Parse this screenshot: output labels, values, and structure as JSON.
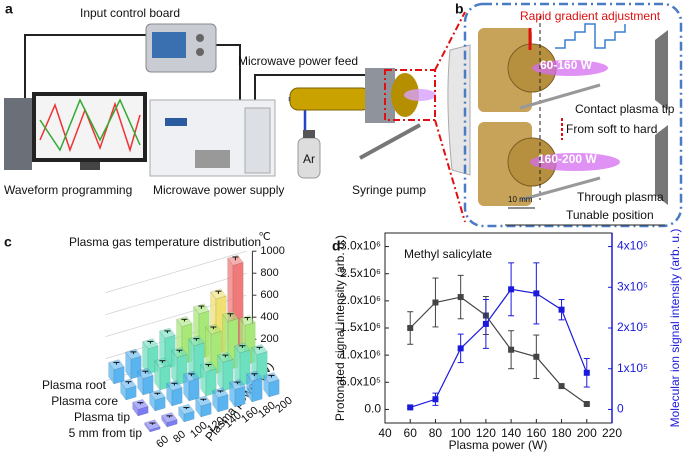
{
  "diagram": {
    "panel_a": {
      "label": "a",
      "input_control_board": "Input control board",
      "microwave_power_feed": "Microwave power feed",
      "waveform_programming": "Waveform programming",
      "microwave_power_supply": "Microwave power supply",
      "syringe_pump": "Syringe pump",
      "gas": "Ar"
    },
    "panel_b": {
      "label": "b",
      "rapid_gradient_adjustment": "Rapid gradient adjustment",
      "low_power": "60-160 W",
      "contact_plasma_tip": "Contact plasma tip",
      "from_soft_to_hard": "From soft to hard",
      "high_power": "160-200 W",
      "through_plasma": "Through plasma",
      "scale_bar": "10 mm",
      "tunable_position": "Tunable position"
    }
  },
  "chart_data": [
    {
      "type": "bar3d",
      "panel_label": "c",
      "title": "Plasma gas temperature distribution",
      "x_label": "Plasma power (W)",
      "categories": [
        60,
        80,
        100,
        120,
        140,
        160,
        180,
        200
      ],
      "series": [
        {
          "name": "Plasma root",
          "values": [
            330,
            380,
            430,
            480,
            540,
            610,
            700,
            960
          ],
          "errors": [
            20,
            20,
            20,
            20,
            20,
            25,
            25,
            30
          ]
        },
        {
          "name": "Plasma core",
          "values": [
            300,
            350,
            400,
            450,
            510,
            570,
            640,
            560
          ],
          "errors": [
            20,
            20,
            20,
            20,
            20,
            20,
            25,
            25
          ]
        },
        {
          "name": "Plasma tip",
          "values": [
            260,
            300,
            340,
            380,
            420,
            460,
            500,
            440
          ],
          "errors": [
            15,
            15,
            20,
            20,
            20,
            20,
            20,
            20
          ]
        },
        {
          "name": "5 mm from tip",
          "values": [
            220,
            240,
            270,
            300,
            330,
            360,
            390,
            330
          ],
          "errors": [
            15,
            15,
            15,
            15,
            15,
            20,
            20,
            20
          ]
        }
      ],
      "zlim": [
        200,
        1000
      ],
      "zticks": [
        200,
        400,
        600,
        800,
        1000
      ],
      "z_unit": "℃",
      "colormap": [
        "#7b7bf5",
        "#5ab4f0",
        "#6de0c0",
        "#a8e878",
        "#f0e070",
        "#f5b060",
        "#f07a7a"
      ]
    },
    {
      "type": "line",
      "panel_label": "d",
      "annotation": "Methyl salicylate",
      "x_label": "Plasma power (W)",
      "y_label": "Protonated signal intensity (arb. u.)",
      "y2_label": "Molecular ion signal intensity (arb. u.)",
      "x": [
        60,
        80,
        100,
        120,
        140,
        160,
        180,
        200
      ],
      "series": [
        {
          "name": "Protonated",
          "color": "#444444",
          "values": [
            1500000,
            1970000,
            2070000,
            1730000,
            1100000,
            970000,
            430000,
            100000
          ],
          "errors": [
            300000,
            450000,
            400000,
            350000,
            350000,
            400000,
            30000,
            20000
          ]
        },
        {
          "name": "Molecular ion",
          "color": "#1a1adc",
          "axis": "y2",
          "values": [
            5000,
            25000,
            150000,
            210000,
            295000,
            285000,
            245000,
            90000
          ],
          "errors": [
            3000,
            15000,
            35000,
            60000,
            65000,
            75000,
            25000,
            35000
          ]
        }
      ],
      "xlim": [
        40,
        220
      ],
      "xticks": [
        40,
        60,
        80,
        100,
        120,
        140,
        160,
        180,
        200,
        220
      ],
      "ylim": [
        -250000,
        3250000
      ],
      "yticks": [
        {
          "value": 0,
          "label": "0.0"
        },
        {
          "value": 500000,
          "label": "5.0x10⁵"
        },
        {
          "value": 1000000,
          "label": "1.0x10⁶"
        },
        {
          "value": 1500000,
          "label": "1.5x10⁶"
        },
        {
          "value": 2000000,
          "label": "2.0x10⁶"
        },
        {
          "value": 2500000,
          "label": "2.5x10⁶"
        },
        {
          "value": 3000000,
          "label": "3.0x10⁶"
        }
      ],
      "y2lim": [
        -33333,
        433333
      ],
      "y2ticks": [
        0,
        {
          "value": 100000,
          "label": "1x10⁵"
        },
        {
          "value": 200000,
          "label": "2x10⁵"
        },
        {
          "value": 300000,
          "label": "3x10⁵"
        },
        {
          "value": 400000,
          "label": "4x10⁵"
        }
      ]
    }
  ]
}
